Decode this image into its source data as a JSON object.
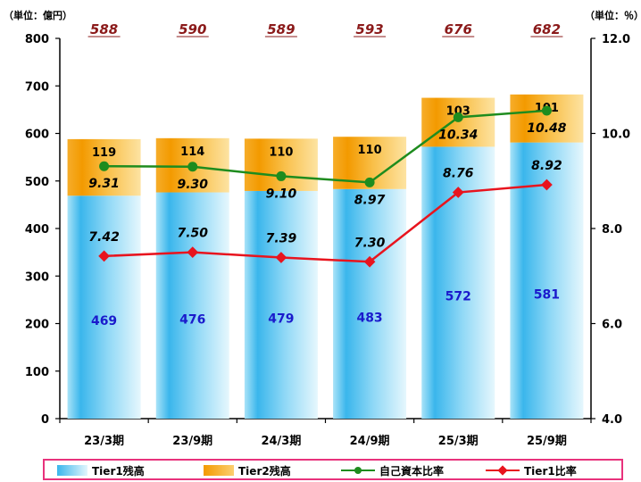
{
  "units": {
    "left": "（単位：億円）",
    "right": "（単位：％）"
  },
  "chart_data": {
    "type": "bar",
    "categories": [
      "23/3期",
      "23/9期",
      "24/3期",
      "24/9期",
      "25/3期",
      "25/9期"
    ],
    "totals": [
      "588",
      "590",
      "589",
      "593",
      "676",
      "682"
    ],
    "series": [
      {
        "name": "Tier1残高",
        "kind": "bar",
        "axis": "left",
        "values": [
          469,
          476,
          479,
          483,
          572,
          581
        ],
        "color": "#3ab6ec"
      },
      {
        "name": "Tier2残高",
        "kind": "bar",
        "axis": "left",
        "values": [
          119,
          114,
          110,
          110,
          103,
          101
        ],
        "color": "#f39a00"
      },
      {
        "name": "自己資本比率",
        "kind": "line",
        "axis": "right",
        "values": [
          9.31,
          9.3,
          9.1,
          8.97,
          10.34,
          10.48
        ],
        "labels": [
          "9.31",
          "9.30",
          "9.10",
          "8.97",
          "10.34",
          "10.48"
        ],
        "color": "#1e8c1e"
      },
      {
        "name": "Tier1比率",
        "kind": "line",
        "axis": "right",
        "values": [
          7.42,
          7.5,
          7.39,
          7.3,
          8.76,
          8.92
        ],
        "labels": [
          "7.42",
          "7.50",
          "7.39",
          "7.30",
          "8.76",
          "8.92"
        ],
        "color": "#e8141e"
      }
    ],
    "y_left": {
      "min": 0,
      "max": 800,
      "ticks": [
        "0",
        "100",
        "200",
        "300",
        "400",
        "500",
        "600",
        "700",
        "800"
      ]
    },
    "y_right": {
      "min": 4.0,
      "max": 12.0,
      "ticks": [
        "4.0",
        "6.0",
        "8.0",
        "10.0",
        "12.0"
      ]
    },
    "grid": false,
    "legend": "bottom"
  }
}
